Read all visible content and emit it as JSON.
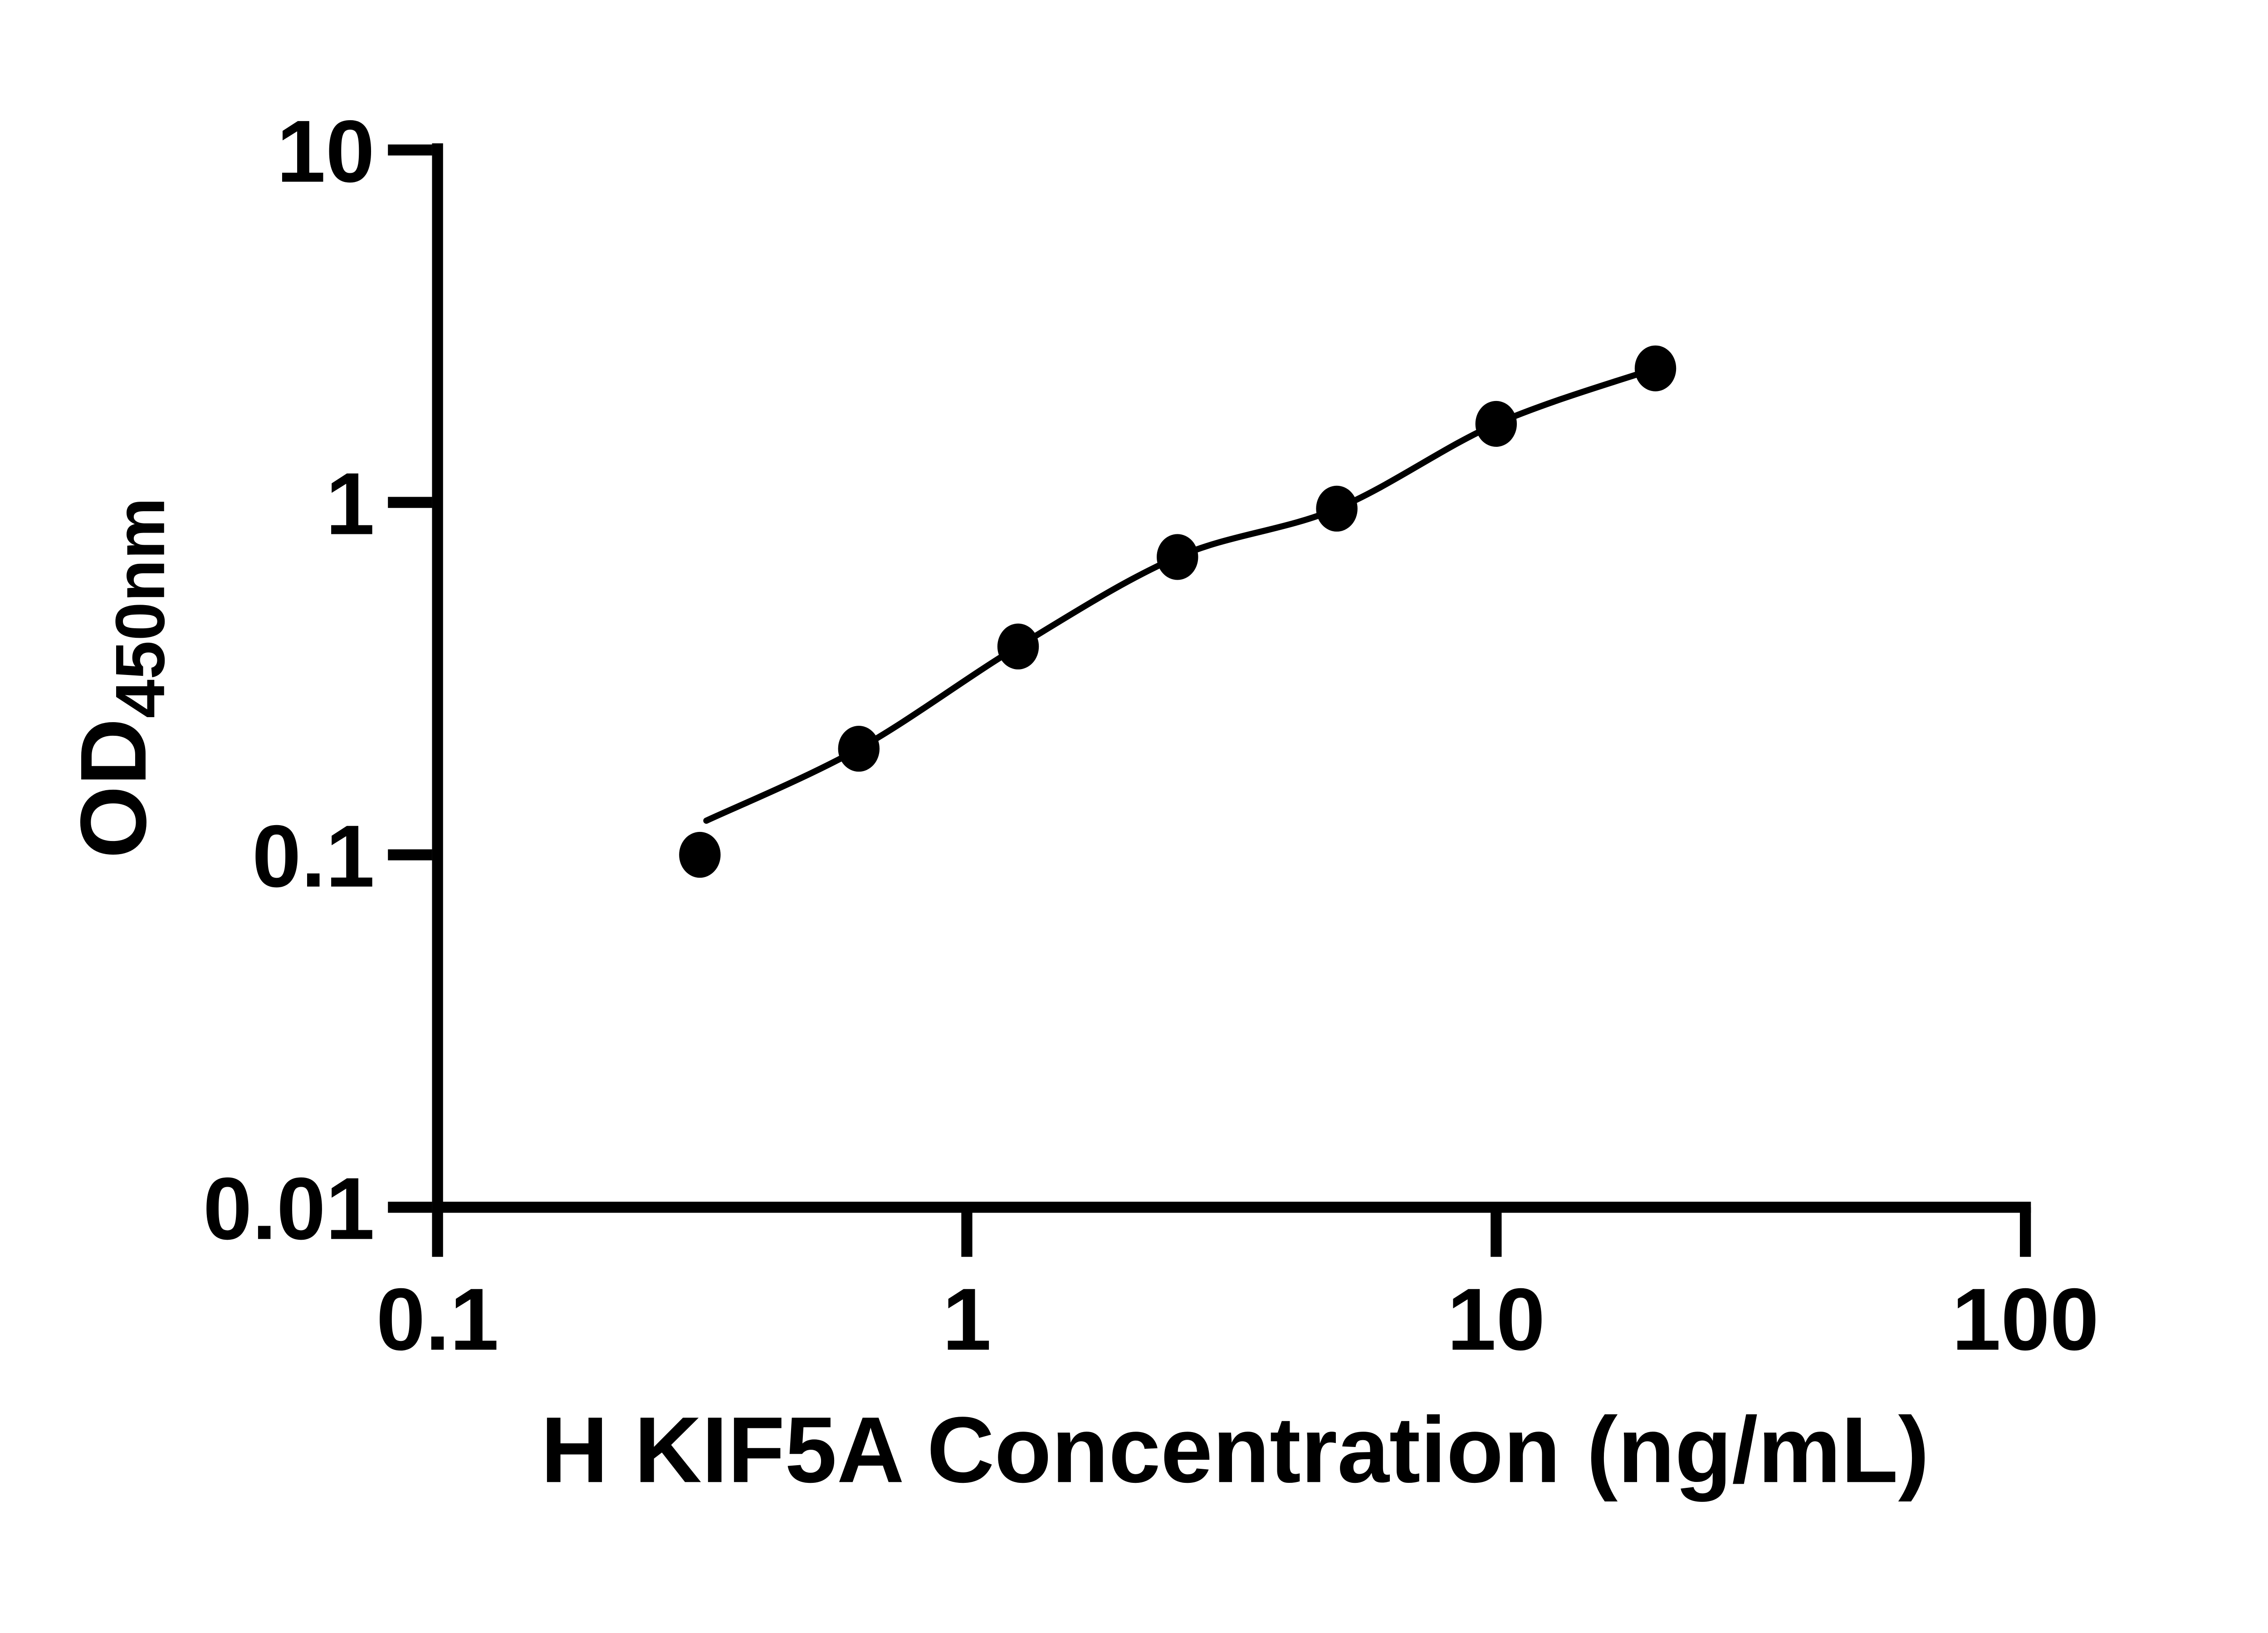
{
  "chart_data": {
    "type": "scatter",
    "title": "",
    "xlabel": "H KIF5A Concentration (ng/mL)",
    "ylabel": "OD",
    "ylabel_subscript": "450nm",
    "x_scale": "log",
    "y_scale": "log",
    "xlim": [
      0.1,
      100
    ],
    "ylim": [
      0.01,
      10
    ],
    "grid": "off",
    "legend": "none",
    "x_ticks": [
      {
        "value": 0.1,
        "label": "0.1"
      },
      {
        "value": 1,
        "label": "1"
      },
      {
        "value": 10,
        "label": "10"
      },
      {
        "value": 100,
        "label": "100"
      }
    ],
    "y_ticks": [
      {
        "value": 10,
        "label": "10"
      },
      {
        "value": 1,
        "label": "1"
      },
      {
        "value": 0.1,
        "label": "0.1"
      },
      {
        "value": 0.01,
        "label": "0.01"
      }
    ],
    "points": [
      {
        "x": 0.313,
        "y": 0.1
      },
      {
        "x": 0.625,
        "y": 0.2
      },
      {
        "x": 1.25,
        "y": 0.39
      },
      {
        "x": 2.5,
        "y": 0.7
      },
      {
        "x": 5,
        "y": 0.96
      },
      {
        "x": 10,
        "y": 1.67
      },
      {
        "x": 20,
        "y": 2.4
      }
    ],
    "fit_curve_start": {
      "x": 0.322,
      "y": 0.125
    },
    "fit_curve_through_points_from_index": 1,
    "marker": "filled-circle",
    "marker_color": "#000000",
    "line_color": "#000000",
    "axis_color": "#000000",
    "background_color": "#ffffff"
  }
}
